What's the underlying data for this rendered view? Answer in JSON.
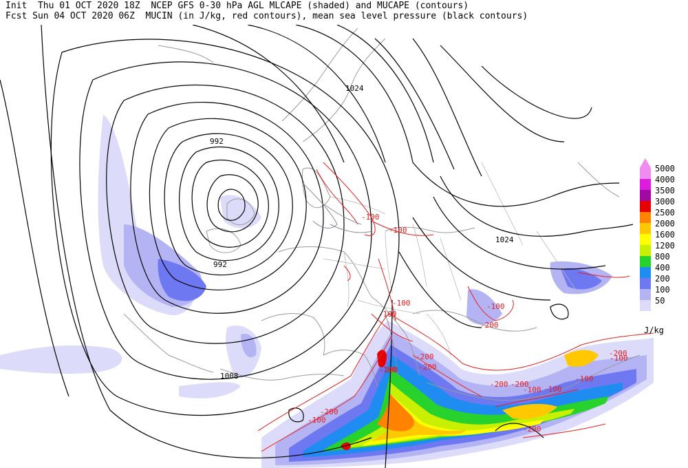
{
  "header": {
    "line1": "Init  Thu 01 OCT 2020 18Z  NCEP GFS 0-30 hPa AGL MLCAPE (shaded) and MUCAPE (contours)",
    "line2": "Fcst Sun 04 OCT 2020 06Z  MUCIN (in J/kg, red contours), mean sea level pressure (black contours)"
  },
  "colorbar": {
    "unit": "J/kg",
    "levels": [
      {
        "label": "5000",
        "color": "#f08cf0"
      },
      {
        "label": "4000",
        "color": "#dc1edc"
      },
      {
        "label": "3500",
        "color": "#a00aa0"
      },
      {
        "label": "3000",
        "color": "#e60000"
      },
      {
        "label": "2500",
        "color": "#ff8200"
      },
      {
        "label": "2000",
        "color": "#ffc800"
      },
      {
        "label": "1600",
        "color": "#ffff00"
      },
      {
        "label": "1200",
        "color": "#c8f000"
      },
      {
        "label": "800",
        "color": "#28d22d"
      },
      {
        "label": "400",
        "color": "#1e8cf0"
      },
      {
        "label": "200",
        "color": "#6e78f0"
      },
      {
        "label": "100",
        "color": "#b4b4f5"
      },
      {
        "label": "50",
        "color": "#dcdcfa"
      }
    ]
  },
  "pressure_labels": [
    "1024",
    "992",
    "992",
    "1024",
    "1008"
  ],
  "cin_labels": [
    "-100",
    "-100",
    "-100",
    "-100",
    "-100",
    "-200",
    "-200",
    "-100",
    "-200",
    "-200",
    "-200",
    "-100",
    "-100",
    "-100",
    "-200",
    "-200",
    "-100",
    "-200",
    "-200",
    "-100"
  ]
}
